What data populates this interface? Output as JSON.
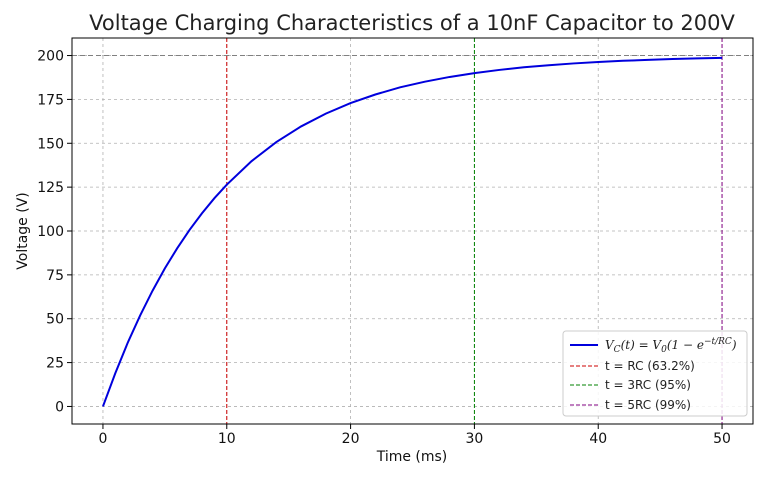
{
  "chart_data": {
    "type": "line",
    "title": "Voltage Charging Characteristics of a 10nF Capacitor to 200V",
    "xlabel": "Time (ms)",
    "ylabel": "Voltage (V)",
    "xlim": [
      -2.5,
      52.5
    ],
    "ylim": [
      -10,
      210
    ],
    "xticks": [
      0,
      10,
      20,
      30,
      40,
      50
    ],
    "yticks": [
      0,
      25,
      50,
      75,
      100,
      125,
      150,
      175,
      200
    ],
    "grid": true,
    "legend_position": "lower-right",
    "series": [
      {
        "name": "V_C(t) = V_0(1 − e^(−t/RC))",
        "color": "#0000dd",
        "x": [
          0,
          1,
          2,
          3,
          4,
          5,
          6,
          7,
          8,
          9,
          10,
          12,
          14,
          16,
          18,
          20,
          22,
          24,
          26,
          28,
          30,
          32,
          34,
          36,
          38,
          40,
          42,
          44,
          46,
          48,
          50
        ],
        "y": [
          0,
          19.0,
          36.3,
          51.8,
          65.9,
          78.7,
          90.2,
          100.7,
          110.1,
          118.7,
          126.4,
          139.8,
          150.7,
          159.6,
          166.9,
          172.9,
          177.8,
          181.9,
          185.1,
          187.8,
          190.0,
          191.8,
          193.3,
          194.5,
          195.5,
          196.3,
          197.0,
          197.5,
          198.0,
          198.4,
          198.7
        ]
      }
    ],
    "reference_lines": [
      {
        "name": "t = RC (63.2%)",
        "x": 10,
        "color": "#cc0000"
      },
      {
        "name": "t = 3RC (95%)",
        "x": 30,
        "color": "#008000"
      },
      {
        "name": "t = 5RC (99%)",
        "x": 50,
        "color": "#800080"
      }
    ],
    "horizontal_lines": [
      {
        "y": 200,
        "color": "#808080"
      }
    ]
  }
}
